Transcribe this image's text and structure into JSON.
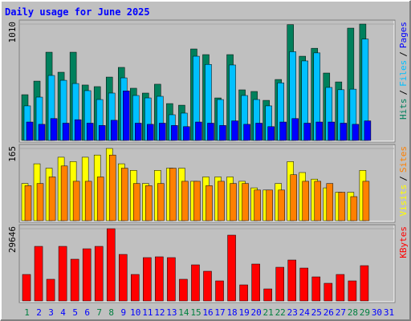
{
  "chart_data": [
    {
      "type": "grouped-bar",
      "title": "Daily usage for June 2025",
      "categories": [
        "1",
        "2",
        "3",
        "4",
        "5",
        "6",
        "7",
        "8",
        "9",
        "10",
        "11",
        "12",
        "13",
        "14",
        "15",
        "16",
        "17",
        "18",
        "19",
        "20",
        "21",
        "22",
        "23",
        "24",
        "25",
        "26",
        "27",
        "28",
        "29",
        "30",
        "31"
      ],
      "series": [
        {
          "name": "Hits",
          "color": "#00805c",
          "values": [
            397,
            515,
            766,
            592,
            766,
            481,
            467,
            550,
            634,
            453,
            411,
            488,
            320,
            306,
            794,
            745,
            369,
            745,
            439,
            425,
            348,
            529,
            1005,
            731,
            800,
            585,
            508,
            975,
            1010,
            null,
            null
          ]
        },
        {
          "name": "Files",
          "color": "#00c0ff",
          "values": [
            300,
            376,
            564,
            522,
            494,
            432,
            355,
            411,
            543,
            390,
            369,
            383,
            223,
            237,
            731,
            660,
            355,
            655,
            390,
            355,
            300,
            500,
            770,
            690,
            760,
            460,
            440,
            445,
            880,
            null,
            null
          ]
        },
        {
          "name": "Pages",
          "color": "#0000ff",
          "values": [
            160,
            140,
            190,
            150,
            180,
            150,
            130,
            175,
            430,
            150,
            140,
            150,
            130,
            120,
            160,
            150,
            130,
            170,
            140,
            150,
            120,
            160,
            190,
            150,
            160,
            160,
            150,
            140,
            170,
            null,
            null
          ]
        }
      ],
      "legend_separator": "/",
      "ylim": [
        0,
        1010
      ],
      "yticks": [
        1010
      ]
    },
    {
      "type": "grouped-bar",
      "series": [
        {
          "name": "Visits",
          "color": "#ffff00",
          "values": [
            85,
            130,
            120,
            145,
            135,
            145,
            150,
            165,
            130,
            115,
            85,
            115,
            120,
            120,
            90,
            100,
            100,
            100,
            90,
            75,
            70,
            85,
            135,
            110,
            95,
            75,
            65,
            65,
            115,
            null,
            null
          ]
        },
        {
          "name": "Sites",
          "color": "#ff8000",
          "values": [
            80,
            85,
            100,
            125,
            90,
            90,
            100,
            150,
            120,
            85,
            80,
            85,
            120,
            90,
            90,
            80,
            90,
            85,
            85,
            70,
            70,
            70,
            105,
            90,
            90,
            85,
            65,
            55,
            90,
            null,
            null
          ]
        }
      ],
      "legend_separator": "/",
      "ylim": [
        0,
        165
      ],
      "yticks": [
        165
      ]
    },
    {
      "type": "bar",
      "categories": [
        "1",
        "2",
        "3",
        "4",
        "5",
        "6",
        "7",
        "8",
        "9",
        "10",
        "11",
        "12",
        "13",
        "14",
        "15",
        "16",
        "17",
        "18",
        "19",
        "20",
        "21",
        "22",
        "23",
        "24",
        "25",
        "26",
        "27",
        "28",
        "29",
        "30",
        "31"
      ],
      "label_colors": [
        "#008040",
        "#0000ff",
        "#0000ff",
        "#0000ff",
        "#0000ff",
        "#0000ff",
        "#008040",
        "#008040",
        "#0000ff",
        "#0000ff",
        "#0000ff",
        "#0000ff",
        "#0000ff",
        "#008040",
        "#008040",
        "#0000ff",
        "#0000ff",
        "#0000ff",
        "#0000ff",
        "#0000ff",
        "#008040",
        "#008040",
        "#0000ff",
        "#0000ff",
        "#0000ff",
        "#0000ff",
        "#0000ff",
        "#008040",
        "#008040",
        "#0000ff",
        "#0000ff"
      ],
      "series": [
        {
          "name": "KBytes",
          "color": "#ff0000",
          "values": [
            10870,
            22400,
            8900,
            22400,
            17130,
            21410,
            22400,
            29646,
            19100,
            10870,
            17790,
            18120,
            17790,
            8900,
            14820,
            12190,
            8235,
            27010,
            6590,
            15150,
            4940,
            13830,
            16800,
            13500,
            9880,
            7250,
            10870,
            8235,
            14490,
            null,
            null
          ]
        }
      ],
      "ylim": [
        0,
        29646
      ],
      "yticks": [
        29646
      ]
    }
  ]
}
